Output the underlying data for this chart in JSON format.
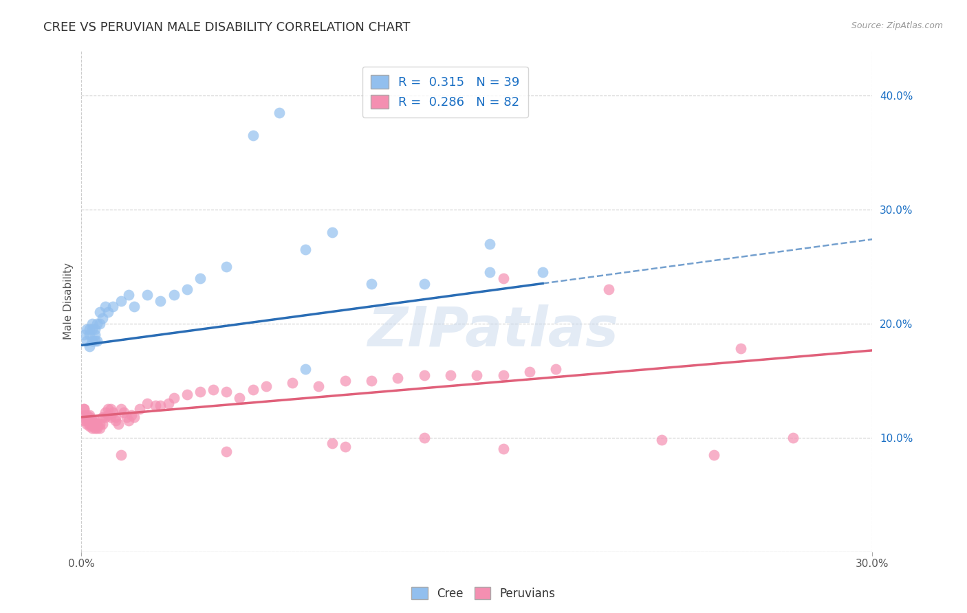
{
  "title": "CREE VS PERUVIAN MALE DISABILITY CORRELATION CHART",
  "source": "Source: ZipAtlas.com",
  "ylabel": "Male Disability",
  "xlim": [
    0.0,
    0.3
  ],
  "ylim": [
    0.0,
    0.44
  ],
  "xticks": [
    0.0,
    0.3
  ],
  "xtick_labels": [
    "0.0%",
    "30.0%"
  ],
  "yticks": [
    0.1,
    0.2,
    0.3,
    0.4
  ],
  "ytick_labels": [
    "10.0%",
    "20.0%",
    "30.0%",
    "40.0%"
  ],
  "grid_yticks": [
    0.0,
    0.1,
    0.2,
    0.3,
    0.4
  ],
  "cree_R": 0.315,
  "cree_N": 39,
  "peruvian_R": 0.286,
  "peruvian_N": 82,
  "cree_color": "#92bfee",
  "peruvian_color": "#f48fb1",
  "trend_cree_color": "#2a6db5",
  "trend_peruvian_color": "#e0607a",
  "background_color": "#ffffff",
  "grid_color": "#cccccc",
  "text_color": "#1a6fc4",
  "watermark": "ZIPatlas",
  "cree_intercept": 0.181,
  "cree_slope": 0.31,
  "peruvian_intercept": 0.118,
  "peruvian_slope": 0.195,
  "cree_trend_solid_end": 0.175,
  "cree_points_x": [
    0.001,
    0.002,
    0.002,
    0.003,
    0.003,
    0.003,
    0.004,
    0.004,
    0.004,
    0.005,
    0.005,
    0.005,
    0.006,
    0.006,
    0.007,
    0.007,
    0.008,
    0.009,
    0.01,
    0.012,
    0.015,
    0.018,
    0.02,
    0.025,
    0.03,
    0.035,
    0.04,
    0.045,
    0.055,
    0.065,
    0.075,
    0.085,
    0.095,
    0.11,
    0.13,
    0.155,
    0.175,
    0.085,
    0.155
  ],
  "cree_points_y": [
    0.19,
    0.185,
    0.195,
    0.18,
    0.19,
    0.195,
    0.185,
    0.2,
    0.195,
    0.185,
    0.19,
    0.195,
    0.2,
    0.185,
    0.2,
    0.21,
    0.205,
    0.215,
    0.21,
    0.215,
    0.22,
    0.225,
    0.215,
    0.225,
    0.22,
    0.225,
    0.23,
    0.24,
    0.25,
    0.365,
    0.385,
    0.265,
    0.28,
    0.235,
    0.235,
    0.245,
    0.245,
    0.16,
    0.27
  ],
  "peruvian_points_x": [
    0.001,
    0.001,
    0.001,
    0.001,
    0.002,
    0.002,
    0.002,
    0.002,
    0.002,
    0.003,
    0.003,
    0.003,
    0.003,
    0.003,
    0.004,
    0.004,
    0.004,
    0.004,
    0.004,
    0.005,
    0.005,
    0.005,
    0.005,
    0.006,
    0.006,
    0.006,
    0.007,
    0.007,
    0.008,
    0.008,
    0.009,
    0.009,
    0.01,
    0.01,
    0.011,
    0.011,
    0.012,
    0.013,
    0.013,
    0.014,
    0.015,
    0.016,
    0.017,
    0.018,
    0.019,
    0.02,
    0.022,
    0.025,
    0.028,
    0.03,
    0.033,
    0.035,
    0.04,
    0.045,
    0.05,
    0.055,
    0.06,
    0.065,
    0.07,
    0.08,
    0.09,
    0.1,
    0.11,
    0.12,
    0.13,
    0.14,
    0.15,
    0.16,
    0.17,
    0.18,
    0.015,
    0.1,
    0.16,
    0.095,
    0.25,
    0.16,
    0.27,
    0.24,
    0.055,
    0.13,
    0.2,
    0.22
  ],
  "peruvian_points_y": [
    0.125,
    0.115,
    0.12,
    0.125,
    0.118,
    0.12,
    0.115,
    0.112,
    0.118,
    0.12,
    0.115,
    0.118,
    0.112,
    0.11,
    0.115,
    0.112,
    0.11,
    0.108,
    0.115,
    0.112,
    0.11,
    0.108,
    0.115,
    0.112,
    0.11,
    0.108,
    0.112,
    0.108,
    0.118,
    0.112,
    0.122,
    0.118,
    0.125,
    0.12,
    0.125,
    0.118,
    0.122,
    0.118,
    0.115,
    0.112,
    0.125,
    0.122,
    0.118,
    0.115,
    0.12,
    0.118,
    0.125,
    0.13,
    0.128,
    0.128,
    0.13,
    0.135,
    0.138,
    0.14,
    0.142,
    0.14,
    0.135,
    0.142,
    0.145,
    0.148,
    0.145,
    0.15,
    0.15,
    0.152,
    0.155,
    0.155,
    0.155,
    0.155,
    0.158,
    0.16,
    0.085,
    0.092,
    0.24,
    0.095,
    0.178,
    0.09,
    0.1,
    0.085,
    0.088,
    0.1,
    0.23,
    0.098
  ]
}
